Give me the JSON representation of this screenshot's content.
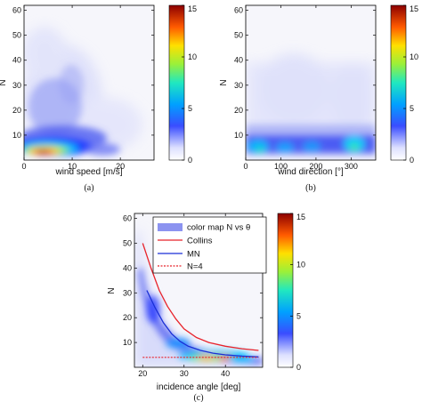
{
  "chart_data": [
    {
      "type": "heatmap",
      "panel": "(a)",
      "xlabel": "wind speed [m/s]",
      "ylabel": "N",
      "xlim": [
        0,
        27
      ],
      "ylim": [
        0,
        62
      ],
      "xticks": [
        0,
        10,
        20
      ],
      "yticks": [
        10,
        20,
        30,
        40,
        50,
        60
      ],
      "colorbar": {
        "ticks": [
          0,
          5,
          10,
          15
        ],
        "range": [
          0,
          15
        ]
      },
      "density_peak": {
        "x": 6,
        "y": 4,
        "value": 15
      }
    },
    {
      "type": "heatmap",
      "panel": "(b)",
      "xlabel": "wind direction [°]",
      "ylabel": "N",
      "xlim": [
        0,
        370
      ],
      "ylim": [
        0,
        62
      ],
      "xticks": [
        0,
        100,
        200,
        300
      ],
      "yticks": [
        10,
        20,
        30,
        40,
        50,
        60
      ],
      "colorbar": {
        "ticks": [
          0,
          5,
          10,
          15
        ],
        "range": [
          0,
          15
        ]
      },
      "density_peak": {
        "x": 30,
        "y": 5,
        "value": 4
      }
    },
    {
      "type": "heatmap",
      "panel": "(c)",
      "xlabel": "incidence angle [deg]",
      "ylabel": "N",
      "xlim": [
        18,
        49
      ],
      "ylim": [
        0,
        62
      ],
      "xticks": [
        20,
        30,
        40
      ],
      "yticks": [
        10,
        20,
        30,
        40,
        50,
        60
      ],
      "colorbar": {
        "ticks": [
          0,
          5,
          10,
          15
        ],
        "range": [
          0,
          15
        ]
      },
      "legend": [
        "color map N vs θ",
        "Collins",
        "MN",
        "N=4"
      ],
      "series": [
        {
          "name": "Collins",
          "color": "#e8232b",
          "x": [
            20,
            22,
            24,
            26,
            28,
            30,
            33,
            36,
            40,
            44,
            48
          ],
          "y": [
            50,
            40,
            31,
            24.5,
            19.5,
            15.5,
            12,
            10,
            8.5,
            7.5,
            6.8
          ]
        },
        {
          "name": "MN",
          "color": "#1a2fd6",
          "x": [
            21,
            23,
            25,
            27,
            29,
            31,
            34,
            37,
            40,
            44,
            48
          ],
          "y": [
            31,
            24,
            18,
            13.5,
            10.5,
            8.5,
            6.8,
            5.7,
            5,
            4.5,
            4.2
          ]
        },
        {
          "name": "N=4",
          "color": "#e8232b",
          "dashed": true,
          "x": [
            20,
            48
          ],
          "y": [
            4,
            4
          ]
        }
      ]
    }
  ]
}
